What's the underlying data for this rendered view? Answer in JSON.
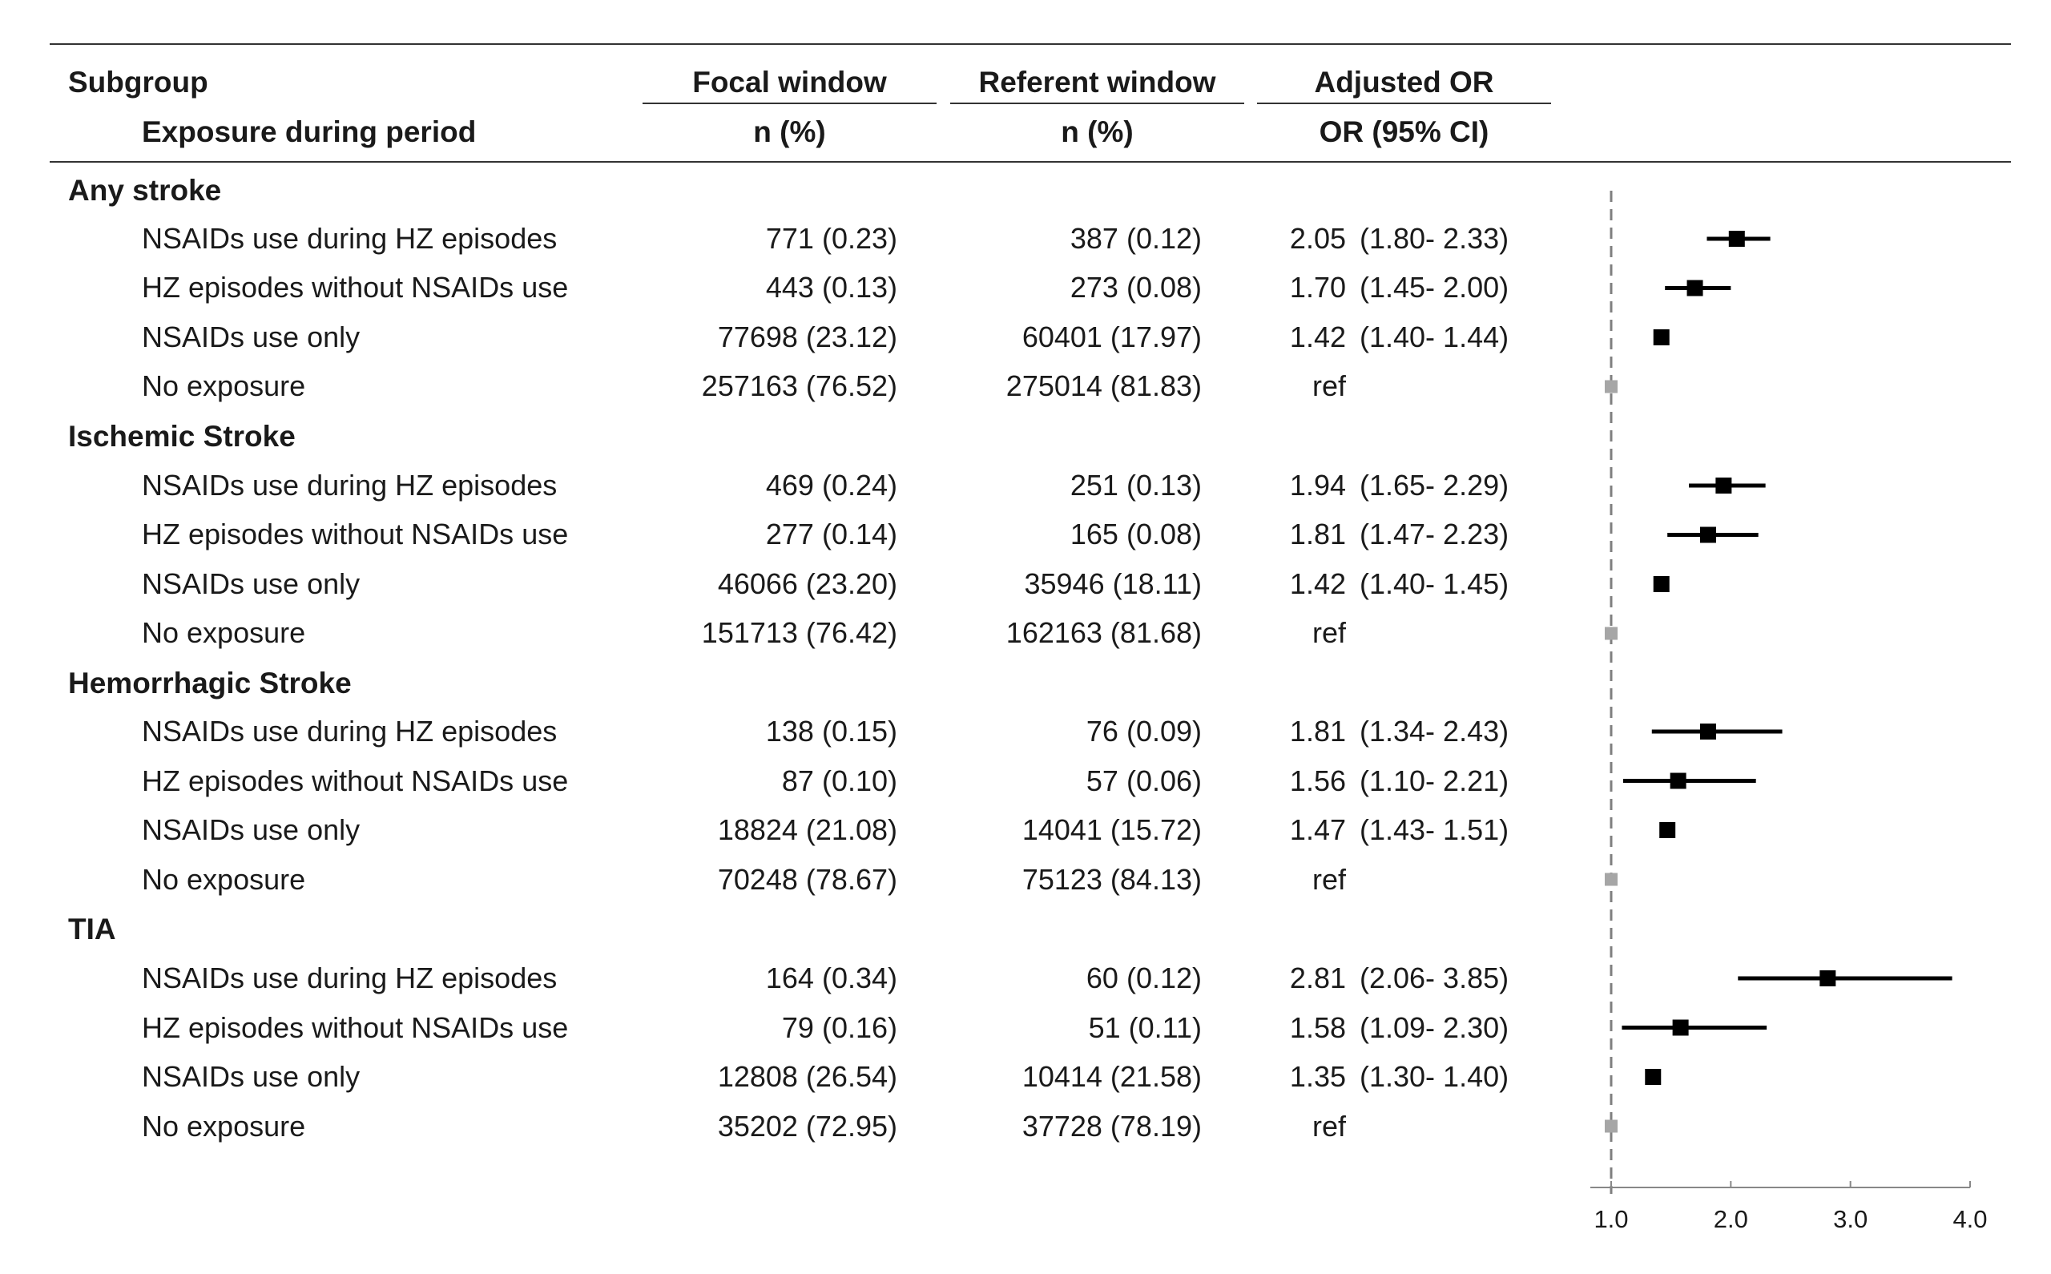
{
  "headers": {
    "subgroup": "Subgroup",
    "exposure": "Exposure during period",
    "focal": "Focal window",
    "focal_sub": "n (%)",
    "referent": "Referent window",
    "referent_sub": "n (%)",
    "adjusted": "Adjusted OR",
    "adjusted_sub": "OR (95% CI)"
  },
  "groups": [
    {
      "name": "Any stroke",
      "rows": [
        {
          "label": "NSAIDs use during HZ episodes",
          "focal": "771 (0.23)",
          "referent": "387 (0.12)",
          "or": "2.05",
          "ci": "(1.80- 2.33)"
        },
        {
          "label": "HZ episodes without NSAIDs use",
          "focal": "443 (0.13)",
          "referent": "273 (0.08)",
          "or": "1.70",
          "ci": "(1.45- 2.00)"
        },
        {
          "label": "NSAIDs use only",
          "focal": "77698 (23.12)",
          "referent": "60401 (17.97)",
          "or": "1.42",
          "ci": "(1.40- 1.44)"
        },
        {
          "label": "No exposure",
          "focal": "257163 (76.52)",
          "referent": "275014 (81.83)",
          "or": "ref",
          "ci": ""
        }
      ]
    },
    {
      "name": "Ischemic Stroke",
      "rows": [
        {
          "label": "NSAIDs use during HZ episodes",
          "focal": "469 (0.24)",
          "referent": "251 (0.13)",
          "or": "1.94",
          "ci": "(1.65- 2.29)"
        },
        {
          "label": "HZ episodes without NSAIDs use",
          "focal": "277 (0.14)",
          "referent": "165 (0.08)",
          "or": "1.81",
          "ci": "(1.47- 2.23)"
        },
        {
          "label": "NSAIDs use only",
          "focal": "46066 (23.20)",
          "referent": "35946 (18.11)",
          "or": "1.42",
          "ci": "(1.40- 1.45)"
        },
        {
          "label": "No exposure",
          "focal": "151713 (76.42)",
          "referent": "162163 (81.68)",
          "or": "ref",
          "ci": ""
        }
      ]
    },
    {
      "name": "Hemorrhagic Stroke",
      "rows": [
        {
          "label": "NSAIDs use during HZ episodes",
          "focal": "138 (0.15)",
          "referent": "76 (0.09)",
          "or": "1.81",
          "ci": "(1.34- 2.43)"
        },
        {
          "label": "HZ episodes without NSAIDs use",
          "focal": "87 (0.10)",
          "referent": "57 (0.06)",
          "or": "1.56",
          "ci": "(1.10- 2.21)"
        },
        {
          "label": "NSAIDs use only",
          "focal": "18824 (21.08)",
          "referent": "14041 (15.72)",
          "or": "1.47",
          "ci": "(1.43- 1.51)"
        },
        {
          "label": "No exposure",
          "focal": "70248 (78.67)",
          "referent": "75123 (84.13)",
          "or": "ref",
          "ci": ""
        }
      ]
    },
    {
      "name": "TIA",
      "rows": [
        {
          "label": "NSAIDs use during HZ episodes",
          "focal": "164 (0.34)",
          "referent": "60 (0.12)",
          "or": "2.81",
          "ci": "(2.06- 3.85)"
        },
        {
          "label": "HZ episodes without NSAIDs use",
          "focal": "79 (0.16)",
          "referent": "51 (0.11)",
          "or": "1.58",
          "ci": "(1.09- 2.30)"
        },
        {
          "label": "NSAIDs use only",
          "focal": "12808 (26.54)",
          "referent": "10414 (21.58)",
          "or": "1.35",
          "ci": "(1.30- 1.40)"
        },
        {
          "label": "No exposure",
          "focal": "35202 (72.95)",
          "referent": "37728 (78.19)",
          "or": "ref",
          "ci": ""
        }
      ]
    }
  ],
  "chart_data": {
    "type": "forest",
    "xlim": [
      1.0,
      4.0
    ],
    "xticks": [
      "1.0",
      "2.0",
      "3.0",
      "4.0"
    ],
    "reference_line": 1.0,
    "colors": {
      "estimate": "#000000",
      "reference": "#a6a6a6",
      "ref_line": "#7f7f7f"
    },
    "series": [
      {
        "group": "Any stroke",
        "points": [
          {
            "label": "NSAIDs use during HZ episodes",
            "or": 2.05,
            "lo": 1.8,
            "hi": 2.33
          },
          {
            "label": "HZ episodes without NSAIDs use",
            "or": 1.7,
            "lo": 1.45,
            "hi": 2.0
          },
          {
            "label": "NSAIDs use only",
            "or": 1.42,
            "lo": 1.4,
            "hi": 1.44
          },
          {
            "label": "No exposure",
            "or": 1.0,
            "lo": 1.0,
            "hi": 1.0,
            "ref": true
          }
        ]
      },
      {
        "group": "Ischemic Stroke",
        "points": [
          {
            "label": "NSAIDs use during HZ episodes",
            "or": 1.94,
            "lo": 1.65,
            "hi": 2.29
          },
          {
            "label": "HZ episodes without NSAIDs use",
            "or": 1.81,
            "lo": 1.47,
            "hi": 2.23
          },
          {
            "label": "NSAIDs use only",
            "or": 1.42,
            "lo": 1.4,
            "hi": 1.45
          },
          {
            "label": "No exposure",
            "or": 1.0,
            "lo": 1.0,
            "hi": 1.0,
            "ref": true
          }
        ]
      },
      {
        "group": "Hemorrhagic Stroke",
        "points": [
          {
            "label": "NSAIDs use during HZ episodes",
            "or": 1.81,
            "lo": 1.34,
            "hi": 2.43
          },
          {
            "label": "HZ episodes without NSAIDs use",
            "or": 1.56,
            "lo": 1.1,
            "hi": 2.21
          },
          {
            "label": "NSAIDs use only",
            "or": 1.47,
            "lo": 1.43,
            "hi": 1.51
          },
          {
            "label": "No exposure",
            "or": 1.0,
            "lo": 1.0,
            "hi": 1.0,
            "ref": true
          }
        ]
      },
      {
        "group": "TIA",
        "points": [
          {
            "label": "NSAIDs use during HZ episodes",
            "or": 2.81,
            "lo": 2.06,
            "hi": 3.85
          },
          {
            "label": "HZ episodes without NSAIDs use",
            "or": 1.58,
            "lo": 1.09,
            "hi": 2.3
          },
          {
            "label": "NSAIDs use only",
            "or": 1.35,
            "lo": 1.3,
            "hi": 1.4
          },
          {
            "label": "No exposure",
            "or": 1.0,
            "lo": 1.0,
            "hi": 1.0,
            "ref": true
          }
        ]
      }
    ]
  }
}
